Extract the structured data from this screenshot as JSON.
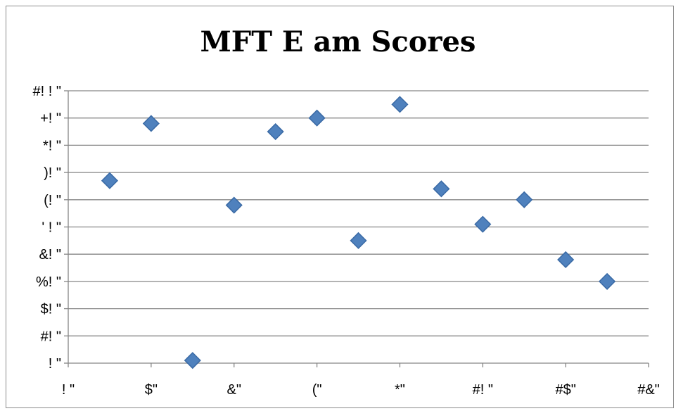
{
  "chart_data": {
    "type": "scatter",
    "title": "MFT E  am Scores",
    "xlabel": "",
    "ylabel": "",
    "x_tick_labels": [
      "! \"",
      "$\"",
      "&\"",
      "(\"",
      "*\"",
      "#! \"",
      "#$\"",
      "#&\""
    ],
    "y_tick_labels": [
      "! \"",
      "#! \"",
      "$! \"",
      "%! \"",
      "&! \"",
      "' ! \"",
      "(! \"",
      ")! \"",
      "*! \"",
      "+! \"",
      "#! ! \""
    ],
    "xlim": [
      0,
      14
    ],
    "ylim": [
      0,
      100
    ],
    "grid": "horizontal",
    "legend": "none",
    "marker": "diamond",
    "marker_color": "#4f81bd",
    "marker_edge_color": "#3a6aa5",
    "points": [
      {
        "x": 1,
        "y": 67
      },
      {
        "x": 2,
        "y": 88
      },
      {
        "x": 3,
        "y": 1
      },
      {
        "x": 4,
        "y": 58
      },
      {
        "x": 5,
        "y": 85
      },
      {
        "x": 6,
        "y": 90
      },
      {
        "x": 7,
        "y": 45
      },
      {
        "x": 8,
        "y": 95
      },
      {
        "x": 9,
        "y": 64
      },
      {
        "x": 10,
        "y": 51
      },
      {
        "x": 11,
        "y": 60
      },
      {
        "x": 12,
        "y": 38
      },
      {
        "x": 13,
        "y": 30
      }
    ]
  }
}
